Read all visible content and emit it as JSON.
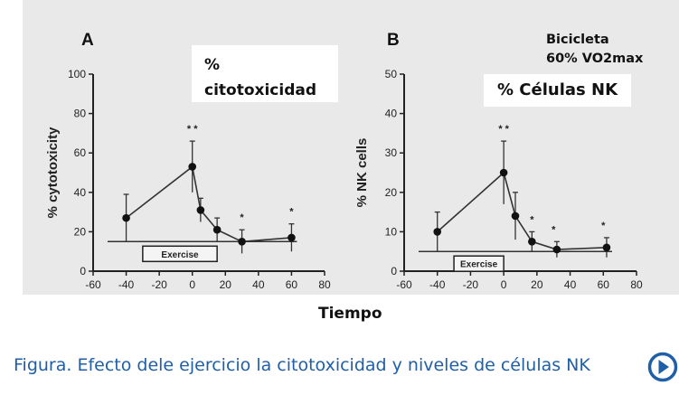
{
  "figure": {
    "x_caption": "Tiempo",
    "caption": "Figura. Efecto dele ejercicio la citotoxicidad y niveles de  células NK",
    "overlay_a": [
      "%",
      "citotoxicidad"
    ],
    "overlay_b": "% Células NK",
    "corner_note": [
      "Bicicleta",
      "60% VO2max"
    ],
    "play_icon": "play-circle-icon",
    "caption_color": "#1f5fa8"
  },
  "chart_data": [
    {
      "type": "line",
      "panel_label": "A",
      "xlabel": "",
      "ylabel": "% cytotoxicity",
      "xlim": [
        -60,
        80
      ],
      "ylim": [
        0,
        100
      ],
      "x_ticks": [
        -60,
        -40,
        -20,
        0,
        20,
        40,
        60,
        80
      ],
      "y_ticks": [
        0,
        20,
        40,
        60,
        80,
        100
      ],
      "series": [
        {
          "x": [
            -40,
            0,
            5,
            15,
            30,
            60
          ],
          "y": [
            27,
            53,
            31,
            21,
            15,
            17
          ],
          "err": [
            12,
            13,
            6,
            6,
            6,
            7
          ]
        }
      ],
      "significance": [
        {
          "x": 0,
          "label": "* *"
        },
        {
          "x": 30,
          "label": "*"
        },
        {
          "x": 60,
          "label": "*"
        }
      ],
      "baseline": 15,
      "exercise_bar": {
        "x": [
          -30,
          15
        ],
        "label": "Exercise"
      }
    },
    {
      "type": "line",
      "panel_label": "B",
      "xlabel": "",
      "ylabel": "% NK cells",
      "xlim": [
        -60,
        80
      ],
      "ylim": [
        0,
        50
      ],
      "x_ticks": [
        -60,
        -40,
        -20,
        0,
        20,
        40,
        60,
        80
      ],
      "y_ticks": [
        0,
        10,
        20,
        30,
        40,
        50
      ],
      "series": [
        {
          "x": [
            -40,
            0,
            7,
            17,
            32,
            62
          ],
          "y": [
            10,
            25,
            14,
            7.5,
            5.5,
            6
          ],
          "err": [
            5,
            8,
            6,
            2.5,
            2,
            2.5
          ]
        }
      ],
      "significance": [
        {
          "x": 0,
          "label": "* *"
        },
        {
          "x": 17,
          "label": "*"
        },
        {
          "x": 30,
          "label": "*"
        },
        {
          "x": 60,
          "label": "*"
        }
      ],
      "baseline": 5,
      "exercise_bar": {
        "x": [
          -30,
          0
        ],
        "label": "Exercise"
      }
    }
  ]
}
